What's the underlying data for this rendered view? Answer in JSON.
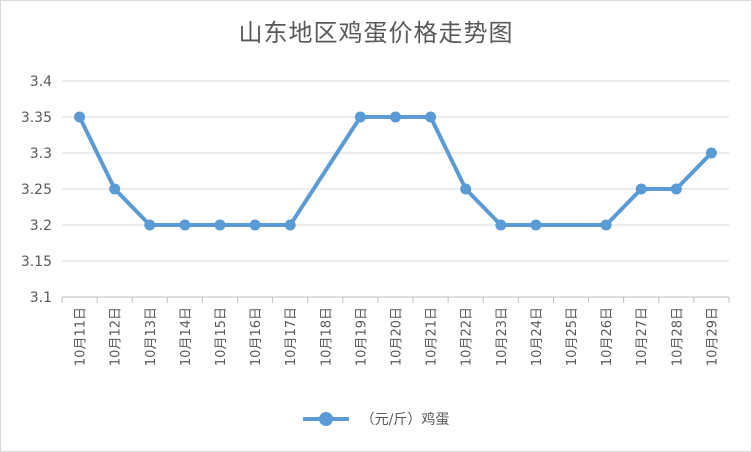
{
  "chart_data": {
    "type": "line",
    "title": "山东地区鸡蛋价格走势图",
    "categories": [
      "10月11日",
      "10月12日",
      "10月13日",
      "10月14日",
      "10月15日",
      "10月16日",
      "10月17日",
      "10月18日",
      "10月19日",
      "10月20日",
      "10月21日",
      "10月22日",
      "10月23日",
      "10月24日",
      "10月25日",
      "10月26日",
      "10月27日",
      "10月28日",
      "10月29日"
    ],
    "series": [
      {
        "name": "（元/斤）鸡蛋",
        "values": [
          3.35,
          3.25,
          3.2,
          3.2,
          3.2,
          3.2,
          3.2,
          null,
          3.35,
          3.35,
          3.35,
          3.25,
          3.2,
          3.2,
          null,
          3.2,
          3.25,
          3.25,
          3.3
        ],
        "color": "#5b9bd5"
      }
    ],
    "yticks": [
      "3.1",
      "3.15",
      "3.2",
      "3.25",
      "3.3",
      "3.35",
      "3.4"
    ],
    "ylim": [
      3.1,
      3.4
    ],
    "grid": true,
    "legend_position": "bottom"
  }
}
